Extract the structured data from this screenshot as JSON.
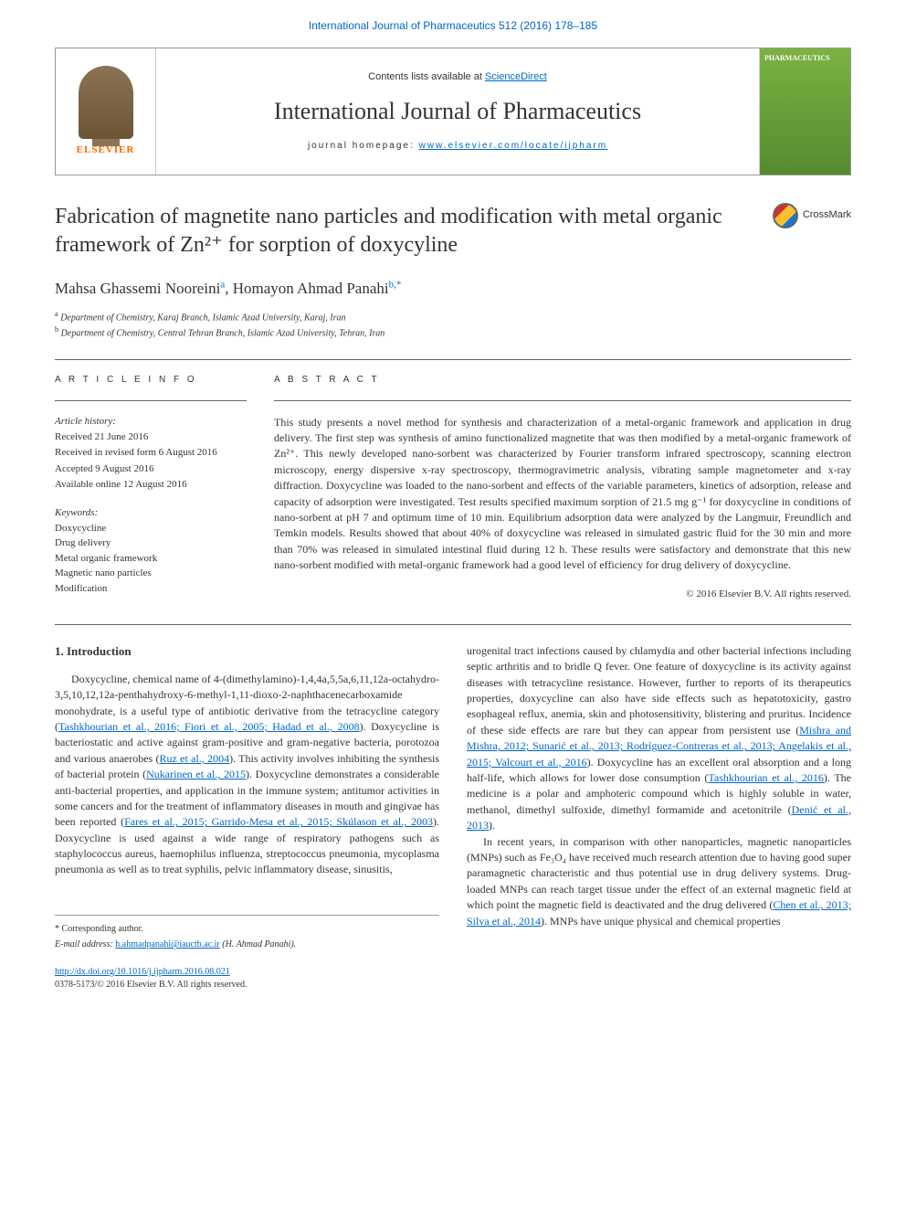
{
  "top_citation": "International Journal of Pharmaceutics 512 (2016) 178–185",
  "header": {
    "contents_prefix": "Contents lists available at ",
    "contents_link": "ScienceDirect",
    "journal_name": "International Journal of Pharmaceutics",
    "homepage_prefix": "journal homepage: ",
    "homepage_link": "www.elsevier.com/locate/ijpharm",
    "publisher": "ELSEVIER",
    "cover_text": "PHARMACEUTICS"
  },
  "crossmark": "CrossMark",
  "article": {
    "title": "Fabrication of magnetite nano particles and modification with metal organic framework of Zn²⁺ for sorption of doxycyline",
    "authors_html": "Mahsa Ghassemi Nooreini",
    "author2": "Homayon Ahmad Panahi",
    "sup_a": "a",
    "sup_b": "b,",
    "sup_star": "*",
    "affiliations": [
      {
        "sup": "a",
        "text": "Department of Chemistry, Karaj Branch, Islamic Azad University, Karaj, Iran"
      },
      {
        "sup": "b",
        "text": "Department of Chemistry, Central Tehran Branch, Islamic Azad University, Tehran, Iran"
      }
    ]
  },
  "info": {
    "heading": "A R T I C L E   I N F O",
    "history_label": "Article history:",
    "history": [
      "Received 21 June 2016",
      "Received in revised form 6 August 2016",
      "Accepted 9 August 2016",
      "Available online 12 August 2016"
    ],
    "keywords_label": "Keywords:",
    "keywords": [
      "Doxycycline",
      "Drug delivery",
      "Metal organic framework",
      "Magnetic nano particles",
      "Modification"
    ]
  },
  "abstract": {
    "heading": "A B S T R A C T",
    "text": "This study presents a novel method for synthesis and characterization of a metal-organic framework and application in drug delivery. The first step was synthesis of amino functionalized magnetite that was then modified by a metal-organic framework of Zn²⁺. This newly developed nano-sorbent was characterized by Fourier transform infrared spectroscopy, scanning electron microscopy, energy dispersive x-ray spectroscopy, thermogravimetric analysis, vibrating sample magnetometer and x-ray diffraction. Doxycycline was loaded to the nano-sorbent and effects of the variable parameters, kinetics of adsorption, release and capacity of adsorption were investigated. Test results specified maximum sorption of 21.5 mg g⁻¹ for doxycycline in conditions of nano-sorbent at pH 7 and optimum time of 10 min. Equilibrium adsorption data were analyzed by the Langmuir, Freundlich and Temkin models. Results showed that about 40% of doxycycline was released in simulated gastric fluid for the 30 min and more than 70% was released in simulated intestinal fluid during 12 h. These results were satisfactory and demonstrate that this new nano-sorbent modified with metal-organic framework had a good level of efficiency for drug delivery of doxycycline.",
    "copyright": "© 2016 Elsevier B.V. All rights reserved."
  },
  "body": {
    "section_heading": "1. Introduction",
    "col1_p1": "Doxycycline, chemical name of 4-(dimethylamino)-1,4,4a,5,5a,6,11,12a-octahydro-3,5,10,12,12a-penthahydroxy-6-methyl-1,11-dioxo-2-naphthacenecarboxamide monohydrate, is a useful type of antibiotic derivative from the tetracycline category (",
    "col1_ref1": "Tashkhourian et al., 2016; Fiori et al., 2005; Hadad et al., 2008",
    "col1_p1b": "). Doxycycline is bacteriostatic and active against gram-positive and gram-negative bacteria, porotozoa and various anaerobes (",
    "col1_ref2": "Ruz et al., 2004",
    "col1_p1c": "). This activity involves inhibiting the synthesis of bacterial protein (",
    "col1_ref3": "Nukarinen et al., 2015",
    "col1_p1d": "). Doxycycline demonstrates a considerable anti-bacterial properties, and application in the immune system; antitumor activities in some cancers and for the treatment of inflammatory diseases in mouth and gingivae has been reported (",
    "col1_ref4": "Fares et al., 2015; Garrido-Mesa et al., 2015; Skúlason et al., 2003",
    "col1_p1e": "). Doxycycline is used against a wide range of respiratory pathogens such as staphylococcus aureus, haemophilus influenza, streptococcus pneumonia, mycoplasma pneumonia as well as to treat syphilis, pelvic inflammatory disease, sinusitis,",
    "col2_p1": "urogenital tract infections caused by chlamydia and other bacterial infections including septic arthritis and to bridle Q fever. One feature of doxycycline is its activity against diseases with tetracycline resistance. However, further to reports of its therapeutics properties, doxycycline can also have side effects such as hepatotoxicity, gastro esophageal reflux, anemia, skin and photosensitivity, blistering and pruritus. Incidence of these side effects are rare but they can appear from persistent use (",
    "col2_ref1": "Mishra and Mishra, 2012; Sunarić et al., 2013; Rodríguez-Contreras et al., 2013; Angelakis et al., 2015; Valcourt et al., 2016",
    "col2_p1b": "). Doxycycline has an excellent oral absorption and a long half-life, which allows for lower dose consumption (",
    "col2_ref2": "Tashkhourian et al., 2016",
    "col2_p1c": "). The medicine is a polar and amphoteric compound which is highly soluble in water, methanol, dimethyl sulfoxide, dimethyl formamide and acetonitrile (",
    "col2_ref3": "Denić et al., 2013",
    "col2_p1d": ").",
    "col2_p2": "In recent years, in comparison with other nanoparticles, magnetic nanoparticles (MNPs) such as Fe₃O₄ have received much research attention due to having good super paramagnetic characteristic and thus potential use in drug delivery systems. Drug-loaded MNPs can reach target tissue under the effect of an external magnetic field at which point the magnetic field is deactivated and the drug delivered (",
    "col2_ref4": "Chen et al., 2013; Silva et al., 2014",
    "col2_p2b": "). MNPs have unique physical and chemical properties"
  },
  "footer": {
    "corresponding": "* Corresponding author.",
    "email_label": "E-mail address: ",
    "email": "h.ahmadpanahi@iauctb.ac.ir",
    "email_suffix": " (H. Ahmad Panahi).",
    "doi": "http://dx.doi.org/10.1016/j.ijpharm.2016.08.021",
    "issn_line": "0378-5173/© 2016 Elsevier B.V. All rights reserved."
  }
}
